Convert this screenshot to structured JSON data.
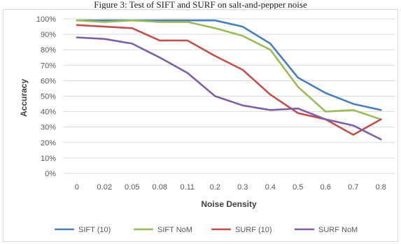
{
  "caption": "Figure 3: Test of SIFT and SURF on salt-and-pepper noise",
  "chart_data": {
    "type": "line",
    "title": "",
    "xlabel": "Noise Density",
    "ylabel": "Accuracy",
    "categories": [
      "0",
      "0.02",
      "0.05",
      "0.08",
      "0.11",
      "0.2",
      "0.3",
      "0.4",
      "0.5",
      "0.6",
      "0.7",
      "0.8"
    ],
    "ylim": [
      0,
      100
    ],
    "yticks": [
      0,
      10,
      20,
      30,
      40,
      50,
      60,
      70,
      80,
      90,
      100
    ],
    "ytick_labels": [
      "0%",
      "10%",
      "20%",
      "30%",
      "40%",
      "50%",
      "60%",
      "70%",
      "80%",
      "90%",
      "100%"
    ],
    "grid": true,
    "legend_position": "bottom",
    "series": [
      {
        "name": "SIFT (10)",
        "color": "#4a7ebb",
        "values": [
          99,
          99,
          99,
          99,
          99,
          99,
          95,
          84,
          62,
          52,
          45,
          41
        ]
      },
      {
        "name": "SIFT NoM",
        "color": "#9bbb59",
        "values": [
          99,
          98,
          99,
          98,
          98,
          94,
          89,
          80,
          56,
          40,
          41,
          35
        ]
      },
      {
        "name": "SURF (10)",
        "color": "#c0504d",
        "values": [
          96,
          95,
          94,
          86,
          86,
          76,
          67,
          51,
          39,
          35,
          25,
          35
        ]
      },
      {
        "name": "SURF NoM",
        "color": "#7f5fa4",
        "values": [
          88,
          87,
          84,
          75,
          65,
          50,
          44,
          41,
          42,
          35,
          31,
          22
        ]
      }
    ]
  }
}
